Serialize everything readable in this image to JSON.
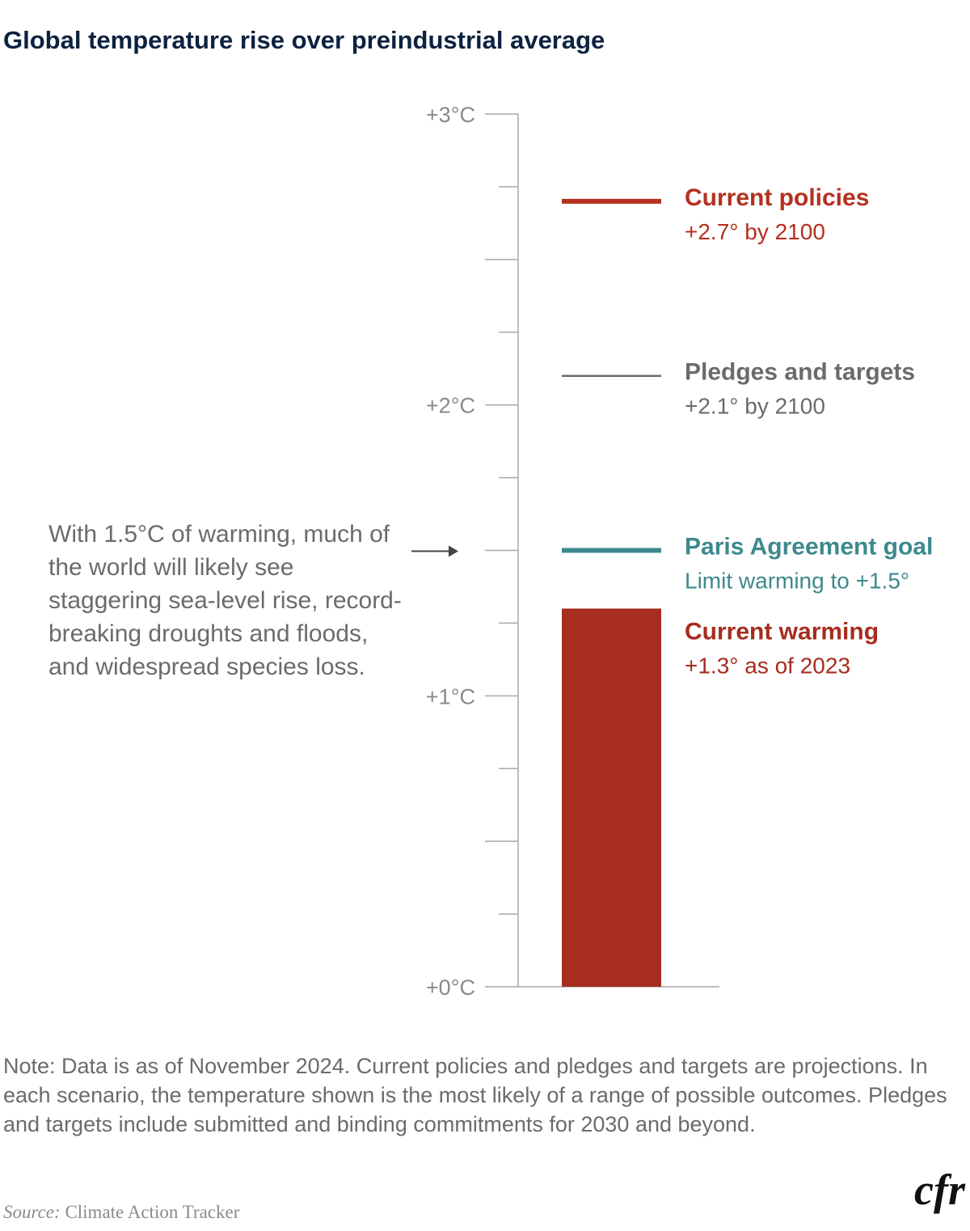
{
  "title": "Global temperature rise over preindustrial average",
  "chart_data": {
    "type": "bar",
    "ylim": [
      0,
      3
    ],
    "minor_tick_step": 0.25,
    "y_ticks": [
      {
        "value": 0,
        "label": "+0°C"
      },
      {
        "value": 1,
        "label": "+1°C"
      },
      {
        "value": 2,
        "label": "+2°C"
      },
      {
        "value": 3,
        "label": "+3°C"
      }
    ],
    "bar": {
      "value": 1.3,
      "title": "Current warming",
      "subtitle": "+1.3° as of 2023",
      "color": "#a62d1f"
    },
    "reference_lines": [
      {
        "value": 2.7,
        "title": "Current policies",
        "subtitle": "+2.7° by 2100",
        "color": "#b5301f",
        "weight": "thick"
      },
      {
        "value": 2.1,
        "title": "Pledges and targets",
        "subtitle": "+2.1° by 2100",
        "color": "#6b6b6b",
        "weight": "thin"
      },
      {
        "value": 1.5,
        "title": "Paris Agreement goal",
        "subtitle": "Limit warming to +1.5°",
        "color": "#3d898d",
        "weight": "thick"
      }
    ],
    "annotation": {
      "value": 1.5,
      "text": "With 1.5°C of warming, much of the world will likely see staggering sea-level rise, record-breaking droughts and floods, and widespread species loss."
    }
  },
  "note": "Note: Data is as of November  2024. Current policies and pledges and targets are projections. In each scenario, the temperature shown is the most likely of a range of possible outcomes. Pledges and targets include submitted and binding commitments for 2030 and beyond.",
  "source_label": "Source:",
  "source": "Climate Action Tracker",
  "logo": "cfr"
}
